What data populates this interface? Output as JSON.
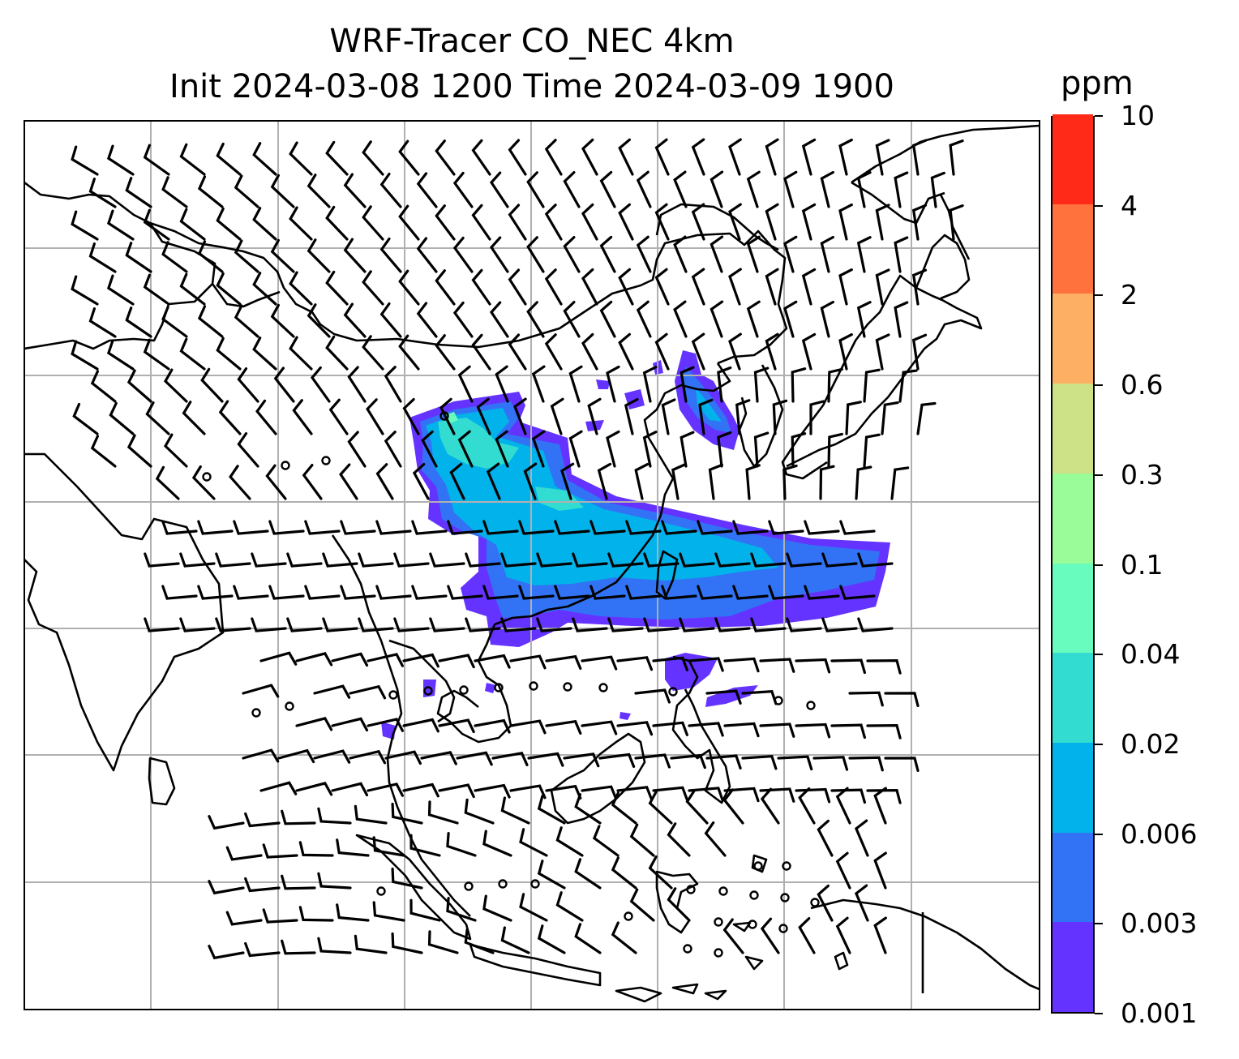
{
  "title": {
    "line1": "WRF-Tracer CO_NEC 4km",
    "line2": "Init 2024-03-08 1200 Time 2024-03-09 1900"
  },
  "colorbar": {
    "unit": "ppm",
    "levels": [
      "0.001",
      "0.003",
      "0.006",
      "0.02",
      "0.04",
      "0.1",
      "0.3",
      "0.6",
      "2",
      "4",
      "10"
    ],
    "colors": [
      "#6433ff",
      "#3273f5",
      "#02b2ea",
      "#32dcd0",
      "#68fcbe",
      "#9afc98",
      "#cde187",
      "#fdb064",
      "#ff723e",
      "#ff2a17"
    ]
  },
  "map": {
    "gridlines": true,
    "frame_color": "#000000",
    "grid_color": "#b0b0b0",
    "coastline_color": "#000000",
    "barb_color": "#000000"
  }
}
